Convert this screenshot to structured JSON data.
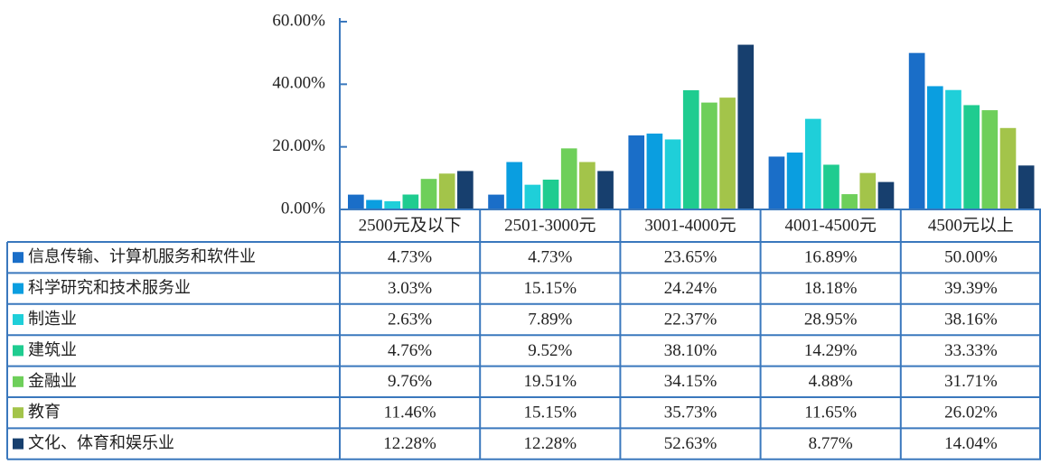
{
  "chart_data": {
    "type": "bar",
    "categories": [
      "2500元及以下",
      "2501-3000元",
      "3001-4000元",
      "4001-4500元",
      "4500元以上"
    ],
    "ylim": [
      0,
      60
    ],
    "yticks": [
      {
        "value": 0,
        "label": "0.00%"
      },
      {
        "value": 20,
        "label": "20.00%"
      },
      {
        "value": 40,
        "label": "40.00%"
      },
      {
        "value": 60,
        "label": "60.00%"
      }
    ],
    "series": [
      {
        "name": "信息传输、计算机服务和软件业",
        "color": "#1a6ec8",
        "values": [
          4.73,
          4.73,
          23.65,
          16.89,
          50.0
        ],
        "value_labels": [
          "4.73%",
          "4.73%",
          "23.65%",
          "16.89%",
          "50.00%"
        ]
      },
      {
        "name": "科学研究和技术服务业",
        "color": "#0a9ee0",
        "values": [
          3.03,
          15.15,
          24.24,
          18.18,
          39.39
        ],
        "value_labels": [
          "3.03%",
          "15.15%",
          "24.24%",
          "18.18%",
          "39.39%"
        ]
      },
      {
        "name": "制造业",
        "color": "#1fcfd9",
        "values": [
          2.63,
          7.89,
          22.37,
          28.95,
          38.16
        ],
        "value_labels": [
          "2.63%",
          "7.89%",
          "22.37%",
          "28.95%",
          "38.16%"
        ]
      },
      {
        "name": "建筑业",
        "color": "#1fcc90",
        "values": [
          4.76,
          9.52,
          38.1,
          14.29,
          33.33
        ],
        "value_labels": [
          "4.76%",
          "9.52%",
          "38.10%",
          "14.29%",
          "33.33%"
        ]
      },
      {
        "name": "金融业",
        "color": "#6ecf5a",
        "values": [
          9.76,
          19.51,
          34.15,
          4.88,
          31.71
        ],
        "value_labels": [
          "9.76%",
          "19.51%",
          "34.15%",
          "4.88%",
          "31.71%"
        ]
      },
      {
        "name": "教育",
        "color": "#a3c44a",
        "values": [
          11.46,
          15.15,
          35.73,
          11.65,
          26.02
        ],
        "value_labels": [
          "11.46%",
          "15.15%",
          "35.73%",
          "11.65%",
          "26.02%"
        ]
      },
      {
        "name": "文化、体育和娱乐业",
        "color": "#173f6e",
        "values": [
          12.28,
          12.28,
          52.63,
          8.77,
          14.04
        ],
        "value_labels": [
          "12.28%",
          "12.28%",
          "52.63%",
          "8.77%",
          "14.04%"
        ]
      }
    ]
  }
}
